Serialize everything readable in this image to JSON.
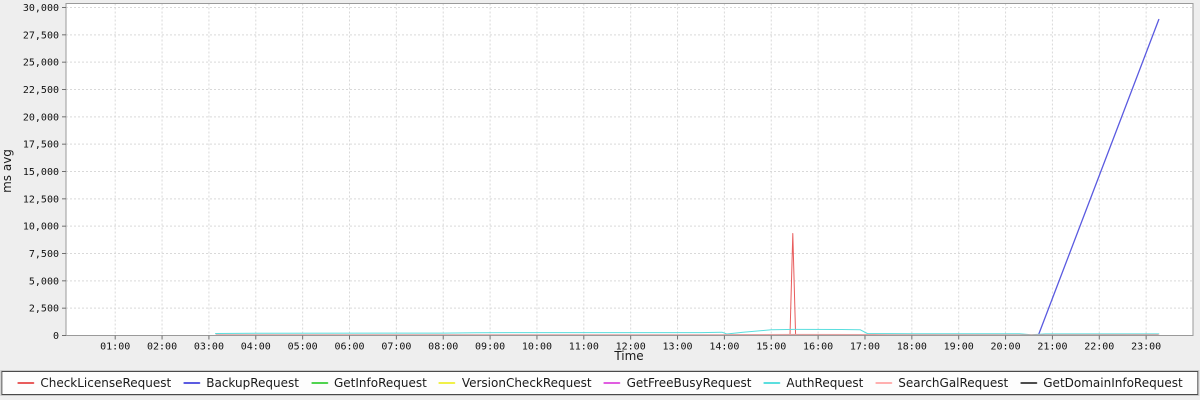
{
  "chart_data": {
    "type": "line",
    "title": "",
    "xlabel": "Time",
    "ylabel": "ms avg",
    "grid": true,
    "legend_position": "bottom",
    "xlim_hours": [
      -0.05,
      24.0
    ],
    "ylim": [
      0,
      30000
    ],
    "y_ticks": {
      "values": [
        0,
        2500,
        5000,
        7500,
        10000,
        12500,
        15000,
        17500,
        20000,
        22500,
        25000,
        27500,
        30000
      ],
      "labels": [
        "0",
        "2,500",
        "5,000",
        "7,500",
        "10,000",
        "12,500",
        "15,000",
        "17,500",
        "20,000",
        "22,500",
        "25,000",
        "27,500",
        "30,000"
      ]
    },
    "x_ticks": {
      "hours": [
        1,
        2,
        3,
        4,
        5,
        6,
        7,
        8,
        9,
        10,
        11,
        12,
        13,
        14,
        15,
        16,
        17,
        18,
        19,
        20,
        21,
        22,
        23
      ],
      "labels": [
        "01:00",
        "02:00",
        "03:00",
        "04:00",
        "05:00",
        "06:00",
        "07:00",
        "08:00",
        "09:00",
        "10:00",
        "11:00",
        "12:00",
        "13:00",
        "14:00",
        "15:00",
        "16:00",
        "17:00",
        "18:00",
        "19:00",
        "20:00",
        "21:00",
        "22:00",
        "23:00"
      ]
    },
    "series": [
      {
        "name": "CheckLicenseRequest",
        "color": "#e85c5c",
        "width": 1,
        "points": [
          [
            3.15,
            25
          ],
          [
            15.4,
            25
          ],
          [
            15.46,
            9330
          ],
          [
            15.52,
            25
          ],
          [
            23.25,
            25
          ]
        ]
      },
      {
        "name": "BackupRequest",
        "color": "#5a5ae0",
        "width": 1.3,
        "points": [
          [
            20.7,
            40
          ],
          [
            23.27,
            28900
          ]
        ]
      },
      {
        "name": "GetInfoRequest",
        "color": "#50d450",
        "width": 1,
        "points": [
          [
            3.15,
            45
          ],
          [
            13.95,
            50
          ],
          [
            14.3,
            75
          ],
          [
            16.9,
            75
          ],
          [
            17.15,
            45
          ],
          [
            23.25,
            40
          ]
        ]
      },
      {
        "name": "VersionCheckRequest",
        "color": "#f0f048",
        "width": 1,
        "points": [
          [
            3.15,
            12
          ],
          [
            23.25,
            12
          ]
        ]
      },
      {
        "name": "GetFreeBusyRequest",
        "color": "#e05ce0",
        "width": 1,
        "points": [
          [
            3.15,
            18
          ],
          [
            23.25,
            18
          ]
        ]
      },
      {
        "name": "AuthRequest",
        "color": "#5adede",
        "width": 1,
        "points": [
          [
            3.14,
            185
          ],
          [
            4.0,
            205
          ],
          [
            8.0,
            215
          ],
          [
            8.7,
            255
          ],
          [
            13.5,
            265
          ],
          [
            13.95,
            300
          ],
          [
            14.05,
            140
          ],
          [
            14.4,
            300
          ],
          [
            15.0,
            520
          ],
          [
            15.5,
            560
          ],
          [
            16.5,
            545
          ],
          [
            16.9,
            520
          ],
          [
            17.05,
            185
          ],
          [
            18.0,
            165
          ],
          [
            20.3,
            165
          ],
          [
            20.55,
            60
          ],
          [
            20.85,
            145
          ],
          [
            23.27,
            150
          ]
        ]
      },
      {
        "name": "SearchGalRequest",
        "color": "#ffafaf",
        "width": 1,
        "points": [
          [
            3.15,
            70
          ],
          [
            13.9,
            75
          ],
          [
            14.3,
            95
          ],
          [
            15.5,
            105
          ],
          [
            17.2,
            95
          ],
          [
            17.6,
            60
          ],
          [
            20.5,
            55
          ],
          [
            23.27,
            60
          ]
        ]
      },
      {
        "name": "GetDomainInfoRequest",
        "color": "#4d4d4d",
        "width": 1,
        "points": [
          [
            3.15,
            6
          ],
          [
            23.25,
            6
          ]
        ]
      }
    ]
  },
  "colors": {
    "page_background": "#eeeeee",
    "plot_background": "#ffffff",
    "grid_line": "#d9d9d9",
    "plot_border": "#9a9a9a",
    "tick_mark": "#6f6f6f",
    "text": "#1a1a1a"
  }
}
